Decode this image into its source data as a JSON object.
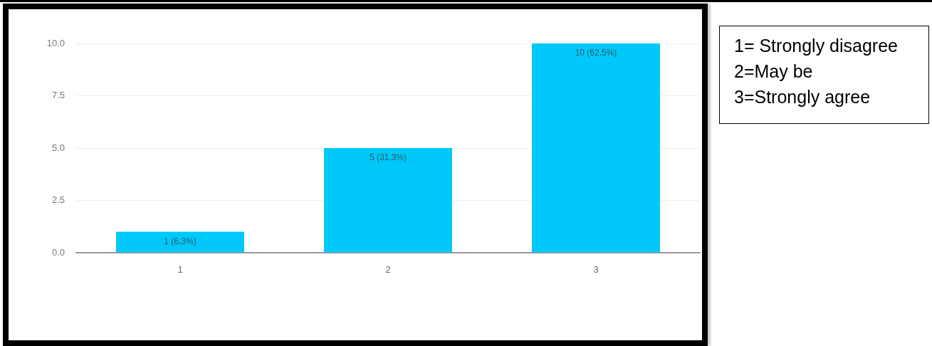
{
  "chart_data": {
    "type": "bar",
    "categories": [
      "1",
      "2",
      "3"
    ],
    "values": [
      1,
      5,
      10
    ],
    "color": "#00c8f8",
    "value_labels": [
      "1 (6.3%)",
      "5 (31.3%)",
      "10 (62.5%)"
    ],
    "ylim": [
      0,
      10
    ],
    "yticks": [
      {
        "value": 0,
        "label": "0.0"
      },
      2.5,
      {
        "value": 5,
        "label": "5.0"
      },
      7.5,
      {
        "value": 10,
        "label": "10.0"
      }
    ],
    "grid": "y",
    "legend": false,
    "annotations": [
      "1= Strongly disagree",
      "2=May be",
      "3=Strongly agree"
    ]
  }
}
